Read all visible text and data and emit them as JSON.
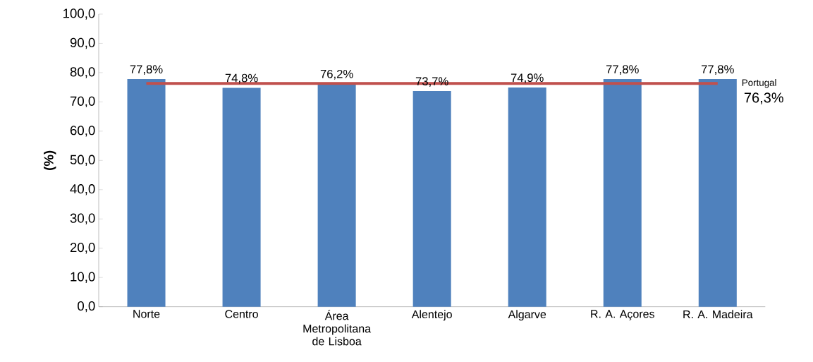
{
  "chart_data": {
    "type": "bar",
    "ylabel": "(%)",
    "categories": [
      "Norte",
      "Centro",
      "Área Metropolitana de Lisboa",
      "Alentejo",
      "Algarve",
      "R. A. Açores",
      "R. A. Madeira"
    ],
    "values": [
      77.8,
      74.8,
      76.2,
      73.7,
      74.9,
      77.8,
      77.8
    ],
    "value_labels": [
      "77,8%",
      "74,8%",
      "76,2%",
      "73,7%",
      "74,9%",
      "77,8%",
      "77,8%"
    ],
    "color": "#4f81bd",
    "ylim": [
      0,
      100
    ],
    "yticks": [
      {
        "value": 0,
        "label": "0,0"
      },
      {
        "value": 10,
        "label": "10,0"
      },
      {
        "value": 20,
        "label": "20,0"
      },
      {
        "value": 30,
        "label": "30,0"
      },
      {
        "value": 40,
        "label": "40,0"
      },
      {
        "value": 50,
        "label": "50,0"
      },
      {
        "value": 60,
        "label": "60,0"
      },
      {
        "value": 70,
        "label": "70,0"
      },
      {
        "value": 80,
        "label": "80,0"
      },
      {
        "value": 90,
        "label": "90,0"
      },
      {
        "value": 100,
        "label": "100,0"
      }
    ],
    "ref_lines": [
      {
        "axis": "y",
        "value": 76.3,
        "label": "Portugal",
        "color": "#c0504d"
      }
    ],
    "annotations": [
      "76,3%"
    ]
  }
}
